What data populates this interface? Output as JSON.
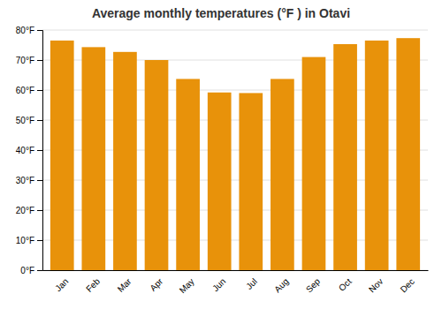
{
  "chart_data": {
    "type": "bar",
    "title": "Average monthly temperatures (°F ) in Otavi",
    "categories": [
      "Jan",
      "Feb",
      "Mar",
      "Apr",
      "May",
      "Jun",
      "Jul",
      "Aug",
      "Sep",
      "Oct",
      "Nov",
      "Dec"
    ],
    "values": [
      76.5,
      74.3,
      72.7,
      70.0,
      63.7,
      59.2,
      59.0,
      63.7,
      71.0,
      75.3,
      76.5,
      77.3
    ],
    "color": "#E8920A",
    "ylim": [
      0,
      80
    ],
    "yticks": [
      {
        "value": 0,
        "label": "0°F"
      },
      {
        "value": 10,
        "label": "10°F"
      },
      {
        "value": 20,
        "label": "20°F"
      },
      {
        "value": 30,
        "label": "30°F"
      },
      {
        "value": 40,
        "label": "40°F"
      },
      {
        "value": 50,
        "label": "50°F"
      },
      {
        "value": 60,
        "label": "60°F"
      },
      {
        "value": 70,
        "label": "70°F"
      },
      {
        "value": 80,
        "label": "80°F"
      }
    ],
    "grid": true
  }
}
